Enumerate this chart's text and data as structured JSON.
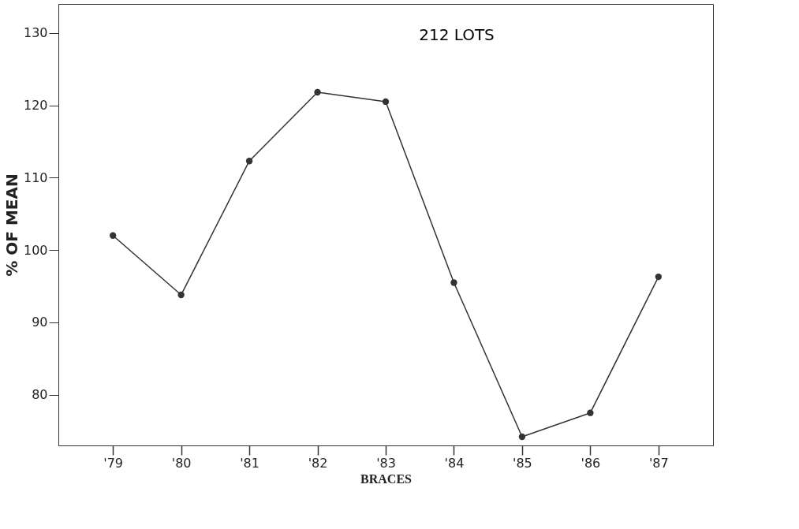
{
  "chart_data": {
    "type": "line",
    "title": "212 LOTS",
    "xlabel": "BRACES",
    "ylabel": "% OF MEAN",
    "categories": [
      "'79",
      "'80",
      "'81",
      "'82",
      "'83",
      "'84",
      "'85",
      "'86",
      "'87"
    ],
    "series": [
      {
        "color": "#333333",
        "values": [
          102,
          93.8,
          112.3,
          121.8,
          120.5,
          95.5,
          74.2,
          77.5,
          96.3
        ]
      }
    ],
    "ylim": [
      73,
      134
    ],
    "yticks": [
      80,
      90,
      100,
      110,
      120,
      130
    ],
    "grid": false,
    "legend": false,
    "marker": "circle",
    "line_style": "solid"
  }
}
